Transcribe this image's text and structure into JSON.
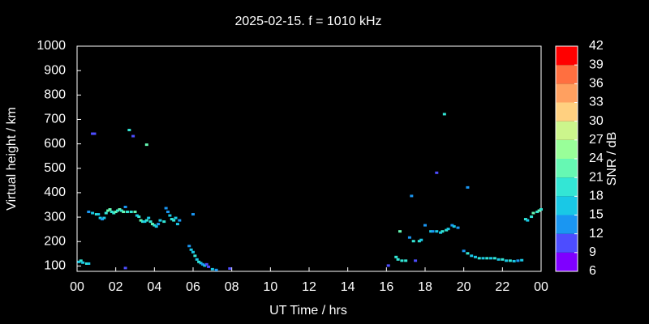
{
  "chart_data": {
    "type": "scatter",
    "title": "2025-02-15. f = 1010 kHz",
    "xlabel": "UT Time / hrs",
    "ylabel": "Virtual height / km",
    "xlim": [
      0,
      24
    ],
    "ylim": [
      78,
      1000
    ],
    "xticks": [
      {
        "value": 0,
        "label": "00"
      },
      {
        "value": 2,
        "label": "02"
      },
      {
        "value": 4,
        "label": "04"
      },
      {
        "value": 6,
        "label": "06"
      },
      {
        "value": 8,
        "label": "08"
      },
      10,
      12,
      14,
      16,
      18,
      20,
      22,
      {
        "value": 24,
        "label": "00"
      }
    ],
    "yticks": [
      100,
      200,
      300,
      400,
      500,
      600,
      700,
      800,
      900,
      1000
    ],
    "x": [
      0.1,
      0.2,
      0.3,
      0.5,
      0.6,
      0.6,
      0.8,
      0.8,
      0.9,
      1.0,
      1.1,
      1.2,
      1.3,
      1.4,
      1.5,
      1.6,
      1.7,
      1.8,
      1.9,
      2.0,
      2.1,
      2.2,
      2.3,
      2.4,
      2.5,
      2.5,
      2.6,
      2.7,
      2.8,
      2.9,
      3.0,
      3.1,
      3.2,
      3.3,
      3.4,
      3.5,
      3.6,
      3.6,
      3.7,
      3.8,
      3.9,
      4.0,
      4.1,
      4.2,
      4.3,
      4.5,
      4.6,
      4.7,
      4.8,
      4.9,
      5.0,
      5.1,
      5.2,
      5.3,
      5.8,
      5.9,
      6.0,
      6.0,
      6.1,
      6.2,
      6.3,
      6.4,
      6.5,
      6.6,
      6.7,
      6.8,
      7.0,
      7.2,
      7.9,
      16.1,
      16.5,
      16.6,
      16.7,
      16.8,
      17.0,
      17.2,
      17.3,
      17.4,
      17.5,
      17.7,
      17.8,
      18.0,
      18.3,
      18.4,
      18.6,
      18.6,
      18.8,
      18.9,
      19.0,
      19.1,
      19.2,
      19.4,
      19.5,
      19.7,
      20.0,
      20.2,
      20.2,
      20.4,
      20.6,
      20.8,
      21.0,
      21.2,
      21.4,
      21.6,
      21.8,
      22.0,
      22.2,
      22.4,
      22.6,
      22.8,
      23.0,
      23.2,
      23.3,
      23.5,
      23.6,
      23.8,
      23.9,
      24.0
    ],
    "values": [
      115,
      120,
      112,
      108,
      108,
      320,
      315,
      640,
      640,
      310,
      310,
      295,
      290,
      295,
      315,
      325,
      330,
      320,
      315,
      320,
      325,
      330,
      325,
      320,
      90,
      340,
      320,
      655,
      320,
      630,
      320,
      305,
      300,
      285,
      280,
      280,
      285,
      595,
      295,
      280,
      270,
      265,
      260,
      270,
      285,
      280,
      335,
      320,
      305,
      290,
      285,
      295,
      270,
      285,
      180,
      165,
      155,
      310,
      140,
      125,
      115,
      110,
      105,
      100,
      105,
      95,
      85,
      82,
      88,
      100,
      135,
      125,
      240,
      120,
      120,
      215,
      385,
      200,
      120,
      200,
      205,
      265,
      240,
      240,
      480,
      240,
      235,
      240,
      720,
      245,
      250,
      265,
      260,
      255,
      160,
      150,
      420,
      140,
      135,
      130,
      130,
      130,
      130,
      130,
      125,
      125,
      120,
      120,
      118,
      120,
      122,
      290,
      285,
      300,
      315,
      320,
      325,
      330
    ],
    "snr": [
      15,
      18,
      15,
      18,
      15,
      12,
      15,
      9,
      9,
      18,
      15,
      15,
      12,
      15,
      18,
      21,
      21,
      18,
      18,
      21,
      18,
      21,
      18,
      21,
      9,
      12,
      18,
      18,
      18,
      9,
      21,
      15,
      18,
      21,
      18,
      15,
      18,
      21,
      15,
      18,
      21,
      18,
      15,
      12,
      15,
      18,
      12,
      12,
      15,
      18,
      18,
      15,
      15,
      12,
      12,
      15,
      15,
      12,
      18,
      15,
      18,
      15,
      12,
      15,
      9,
      9,
      15,
      12,
      9,
      9,
      18,
      18,
      21,
      18,
      18,
      12,
      12,
      18,
      9,
      18,
      15,
      12,
      15,
      12,
      9,
      15,
      15,
      18,
      18,
      18,
      15,
      12,
      15,
      12,
      12,
      18,
      12,
      15,
      15,
      18,
      15,
      18,
      15,
      18,
      15,
      18,
      15,
      18,
      15,
      12,
      15,
      18,
      15,
      18,
      21,
      18,
      21,
      18
    ],
    "colorbar": {
      "label": "SNR / dB",
      "lim": [
        6,
        42
      ],
      "ticks": [
        6,
        9,
        12,
        15,
        18,
        21,
        24,
        27,
        30,
        33,
        36,
        39,
        42
      ],
      "colors": [
        "#7f00ff",
        "#4d4dff",
        "#1a96f2",
        "#19c8e6",
        "#33e6d5",
        "#66f8b3",
        "#99ff99",
        "#ccf58c",
        "#ffd080",
        "#ffa060",
        "#ff6f40",
        "#ff0000"
      ]
    }
  }
}
